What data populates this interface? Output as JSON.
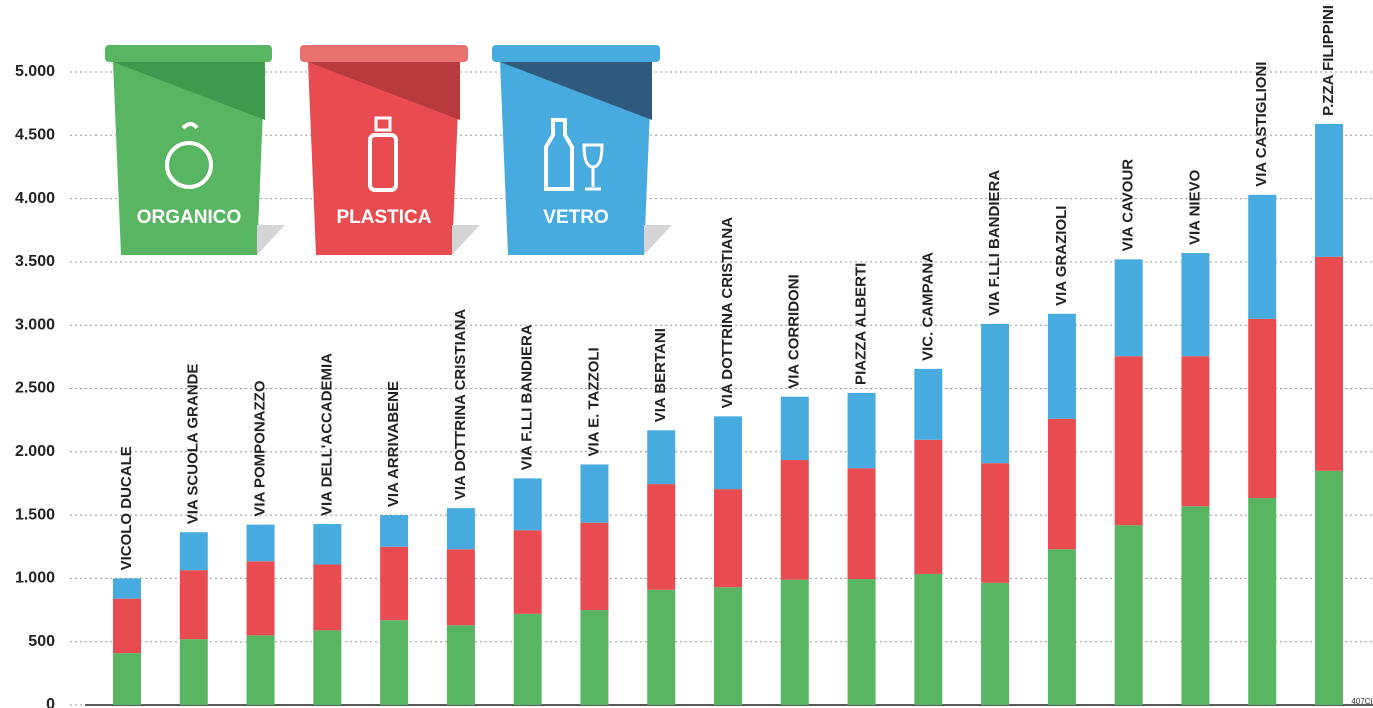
{
  "chart_data": {
    "type": "stacked-bar",
    "categories": [
      "VICOLO DUCALE",
      "VIA SCUOLA GRANDE",
      "VIA POMPONAZZO",
      "VIA DELL'ACCADEMIA",
      "VIA ARRIVABENE",
      "VIA DOTTRINA CRISTIANA",
      "VIA F.LLI BANDIERA",
      "VIA E. TAZZOLI",
      "VIA BERTANI",
      "VIA DOTTRINA CRISTIANA",
      "VIA CORRIDONI",
      "PIAZZA ALBERTI",
      "VIC. CAMPANA",
      "VIA F.LLI BANDIERA",
      "VIA GRAZIOLI",
      "VIA CAVOUR",
      "VIA NIEVO",
      "VIA CASTIGLIONI",
      "P.ZZA FILIPPINI"
    ],
    "series": [
      {
        "name": "ORGANICO",
        "color": "#58b562",
        "values": [
          410,
          520,
          550,
          590,
          670,
          630,
          720,
          750,
          910,
          930,
          990,
          995,
          1035,
          965,
          1230,
          1420,
          1570,
          1635,
          1850
        ]
      },
      {
        "name": "PLASTICA",
        "color": "#e84c50",
        "values": [
          430,
          545,
          585,
          520,
          580,
          600,
          660,
          690,
          835,
          775,
          945,
          875,
          1060,
          945,
          1030,
          1335,
          1185,
          1415,
          1690
        ]
      },
      {
        "name": "VETRO",
        "color": "#48abdf",
        "values": [
          160,
          300,
          290,
          320,
          250,
          325,
          410,
          460,
          425,
          575,
          500,
          595,
          560,
          1100,
          830,
          765,
          815,
          980,
          1050
        ]
      }
    ],
    "ylim": [
      0,
      5000
    ],
    "yticks": [
      0,
      500,
      {
        "value": 1000,
        "label": "1.000"
      },
      {
        "value": 1500,
        "label": "1.500"
      },
      {
        "value": 2000,
        "label": "2.000"
      },
      {
        "value": 2500,
        "label": "2.500"
      },
      {
        "value": 3000,
        "label": "3.000"
      },
      {
        "value": 3500,
        "label": "3.500"
      },
      {
        "value": 4000,
        "label": "4.000"
      },
      {
        "value": 4500,
        "label": "4.500"
      },
      {
        "value": 5000,
        "label": "5.000"
      }
    ],
    "grid": true,
    "credit": "407CI"
  }
}
